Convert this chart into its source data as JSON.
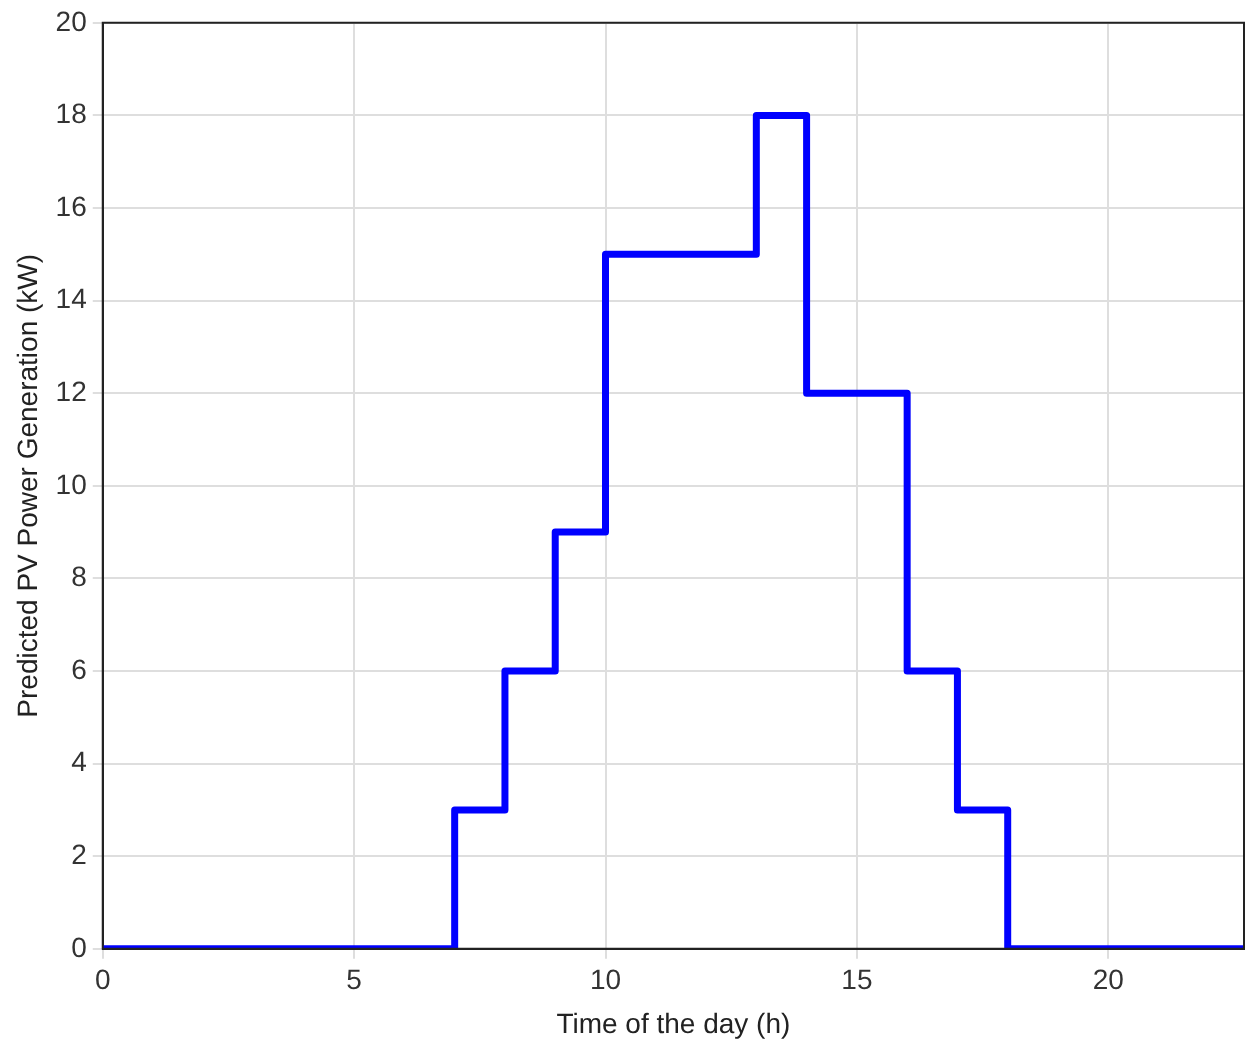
{
  "chart_data": {
    "type": "step",
    "xlabel": "Time of the day (h)",
    "ylabel": "Predicted PV Power Generation (kW)",
    "series": [
      {
        "color": "#0000ff",
        "x": [
          0,
          7,
          8,
          9,
          10,
          13,
          14,
          16,
          17,
          18,
          22.7
        ],
        "values": [
          0,
          3,
          6,
          9,
          15,
          18,
          12,
          6,
          3,
          0,
          0
        ]
      }
    ],
    "xlim": [
      0,
      22.7
    ],
    "xticks": [
      0,
      5,
      10,
      15,
      20
    ],
    "ylim": [
      0,
      20
    ],
    "yticks": [
      0,
      2,
      4,
      6,
      8,
      10,
      12,
      14,
      16,
      18,
      20
    ],
    "grid": true,
    "legend": false
  }
}
